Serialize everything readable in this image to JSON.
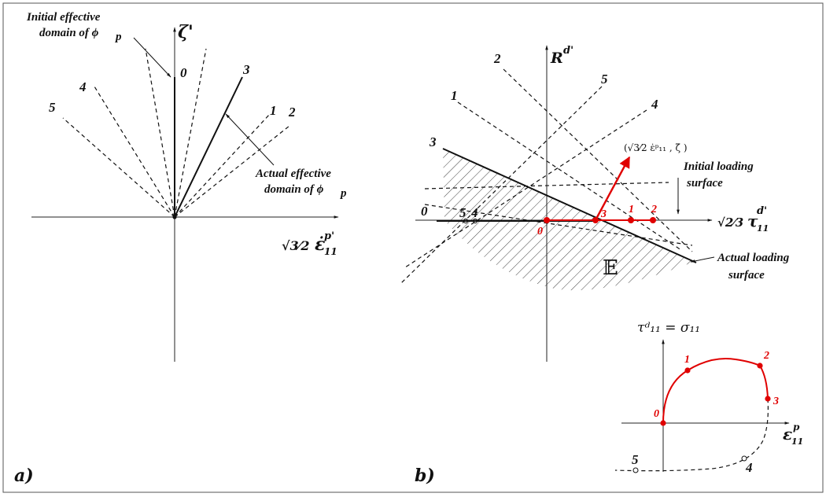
{
  "panel_a": {
    "tag": "a)",
    "y_axis_label": "ζ'",
    "x_axis_label_root": "√3⁄2",
    "x_axis_label_eps": "ε̇",
    "x_axis_label_sub": "11",
    "x_axis_label_sup": "p'",
    "initial_domain_line1": "Initial effective",
    "initial_domain_line2": "domain of ϕ",
    "initial_domain_sub": "p",
    "actual_domain_line1": "Actual effective",
    "actual_domain_line2": "domain of ϕ",
    "actual_domain_sub": "p",
    "ray_labels": [
      "0",
      "3",
      "1",
      "2",
      "4",
      "5"
    ]
  },
  "panel_b": {
    "tag": "b)",
    "y_axis_label": "R",
    "y_axis_sup": "d'",
    "x_axis_label_root": "√2⁄3",
    "x_axis_label_tau": "τ",
    "x_axis_label_sub": "11",
    "x_axis_label_sup": "d'",
    "vector_label": "(√3⁄2 ε̇ᵖ₁₁ , ζ̇ )",
    "initial_surface_line1": "Initial loading",
    "initial_surface_line2": "surface",
    "actual_surface_line1": "Actual loading",
    "actual_surface_line2": "surface",
    "elastic_domain": "𝔼",
    "line_labels": [
      "2",
      "1",
      "5",
      "4",
      "3",
      "0"
    ],
    "point_labels_on_axis": [
      "5",
      "4",
      "0",
      "3",
      "1",
      "2"
    ]
  },
  "inset": {
    "y_axis_label": "τᵈ₁₁ = σ₁₁",
    "x_axis_label_eps": "ε",
    "x_axis_label_sub": "11",
    "x_axis_label_sup": "p",
    "point_labels": [
      "0",
      "1",
      "2",
      "3",
      "4",
      "5"
    ]
  }
}
